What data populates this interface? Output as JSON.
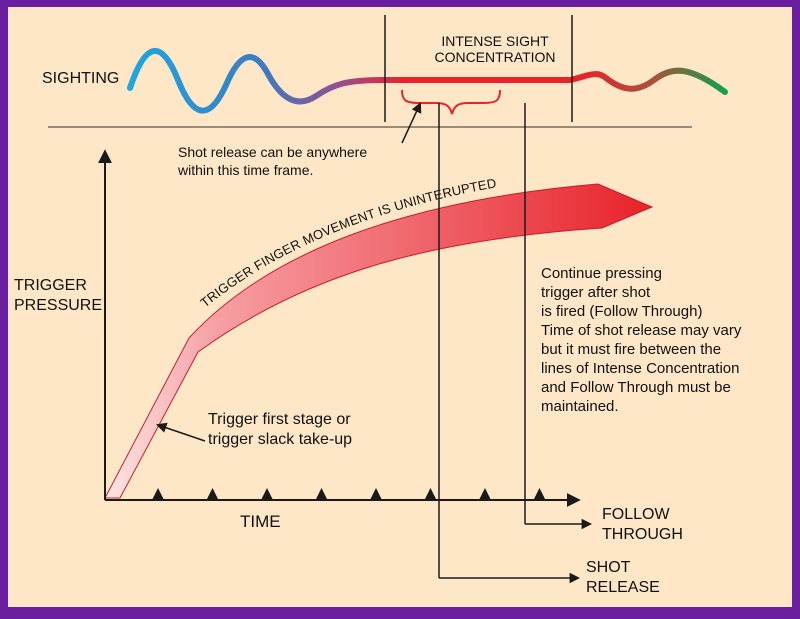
{
  "colors": {
    "frame": "#6a1fa0",
    "background": "#fde7c6",
    "line": "#1a1a1a",
    "accent_red": "#e8232b",
    "wave_blue": "#1ea7e0",
    "wave_green": "#11a050"
  },
  "labels": {
    "sighting": "SIGHTING",
    "intense_line1": "INTENSE SIGHT",
    "intense_line2": "CONCENTRATION",
    "shot_window_line1": "Shot release can be anywhere",
    "shot_window_line2": "within this time frame.",
    "arrow_text": "TRIGGER FINGER MOVEMENT IS UNINTERUPTED",
    "y_axis_line1": "TRIGGER",
    "y_axis_line2": "PRESSURE",
    "x_axis": "TIME",
    "first_stage_line1": "Trigger first stage or",
    "first_stage_line2": "trigger slack take-up",
    "follow_line1": "FOLLOW",
    "follow_line2": "THROUGH",
    "shot_line1": "SHOT",
    "shot_line2": "RELEASE"
  },
  "note_lines": [
    "Continue pressing",
    "trigger after shot",
    "is fired (Follow Through)",
    "Time of shot release may vary",
    "but it must fire between the",
    "lines of Intense Concentration",
    "and Follow Through must be",
    "maintained."
  ],
  "time_ticks": 8
}
